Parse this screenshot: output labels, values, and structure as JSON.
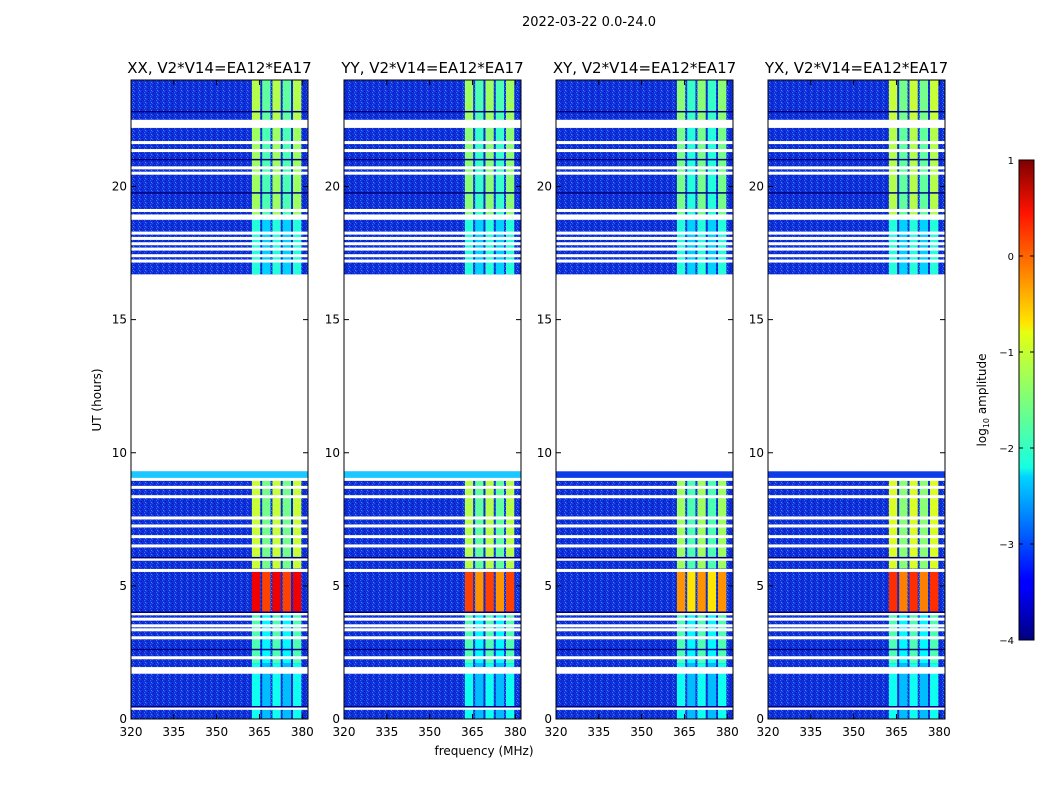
{
  "chart_data": {
    "type": "heatmap",
    "title": "2022-03-22 0.0-24.0",
    "xlabel": "frequency (MHz)",
    "ylabel": "UT (hours)",
    "xlim": [
      320,
      382
    ],
    "ylim": [
      0,
      24
    ],
    "xticks": [
      320,
      335,
      350,
      365,
      380
    ],
    "yticks": [
      0,
      5,
      10,
      15,
      20
    ],
    "colorbar": {
      "label": "log10 amplitude",
      "label_prefix": "log",
      "label_sub": "10",
      "label_suffix": " amplitude",
      "range": [
        -4,
        1
      ],
      "ticks": [
        "1",
        "0",
        "−1",
        "−2",
        "−3",
        "−4"
      ],
      "tick_values": [
        1,
        0,
        -1,
        -2,
        -3,
        -4
      ]
    },
    "data_gaps_hours": [
      [
        16.7,
        9.3
      ]
    ],
    "rfi_band_mhz": [
      362,
      380
    ],
    "panels": [
      {
        "name": "XX",
        "title": "XX, V2*V14=EA12*EA17",
        "band_level": -1.4,
        "peak_level": 0.2
      },
      {
        "name": "YY",
        "title": "YY, V2*V14=EA12*EA17",
        "band_level": -1.5,
        "peak_level": -0.2
      },
      {
        "name": "XY",
        "title": "XY, V2*V14=EA12*EA17",
        "band_level": -1.6,
        "peak_level": -0.6
      },
      {
        "name": "YX",
        "title": "YX, V2*V14=EA12*EA17",
        "band_level": -1.3,
        "peak_level": -0.1
      }
    ]
  }
}
